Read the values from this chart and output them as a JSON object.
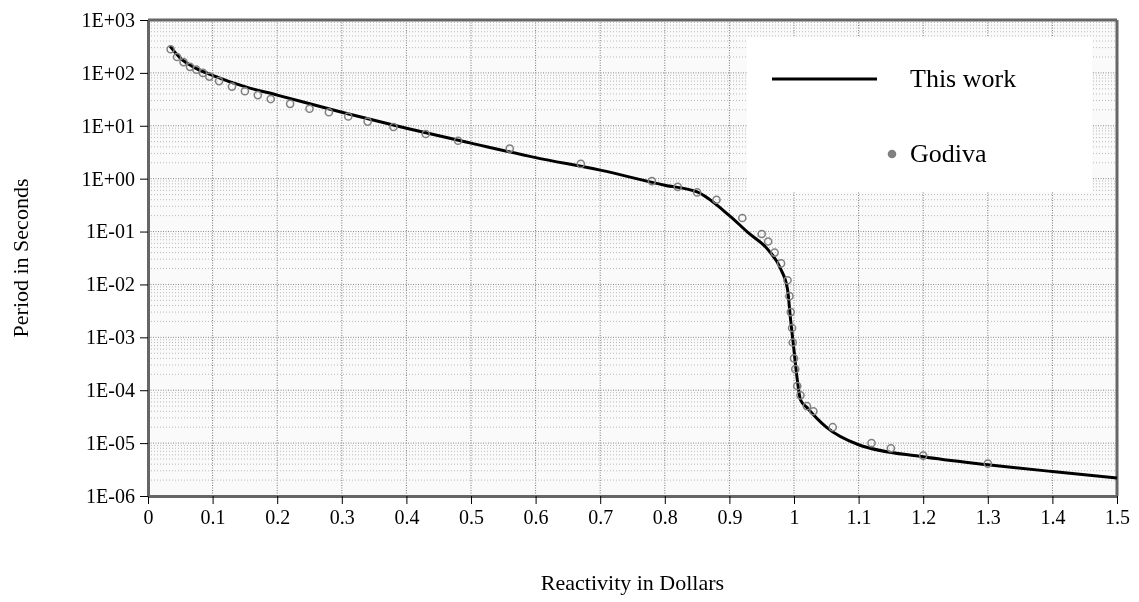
{
  "chart_data": {
    "type": "line",
    "xlabel": "Reactivity in Dollars",
    "ylabel": "Period in Seconds",
    "log": "y",
    "grid": true,
    "legend": "top right",
    "xlim": [
      0,
      1.5
    ],
    "xticks": [
      0,
      0.1,
      0.2,
      0.3,
      0.4,
      0.5,
      0.6,
      0.7,
      0.8,
      0.9,
      1,
      1.1,
      1.2,
      1.3,
      1.4,
      1.5
    ],
    "ylim": [
      1e-06,
      1000
    ],
    "yticks": [
      {
        "value": 1000,
        "label": "1E+03"
      },
      {
        "value": 100,
        "label": "1E+02"
      },
      {
        "value": 10,
        "label": "1E+01"
      },
      {
        "value": 1,
        "label": "1E+00"
      },
      {
        "value": 0.1,
        "label": "1E-01"
      },
      {
        "value": 0.01,
        "label": "1E-02"
      },
      {
        "value": 0.001,
        "label": "1E-03"
      },
      {
        "value": 0.0001,
        "label": "1E-04"
      },
      {
        "value": 1e-05,
        "label": "1E-05"
      },
      {
        "value": 1e-06,
        "label": "1E-06"
      }
    ],
    "series": [
      {
        "name": "This work",
        "color": "#000000",
        "line_style": "solid",
        "marker": "none",
        "x": [
          0.034,
          0.05,
          0.07,
          0.1,
          0.15,
          0.2,
          0.3,
          0.4,
          0.5,
          0.6,
          0.7,
          0.8,
          0.85,
          0.9,
          0.93,
          0.96,
          0.98,
          0.99,
          0.995,
          1.0,
          1.005,
          1.01,
          1.02,
          1.05,
          1.1,
          1.2,
          1.3,
          1.4,
          1.5
        ],
        "values": [
          320,
          190,
          130,
          90,
          55,
          38,
          18,
          9,
          4.7,
          2.5,
          1.45,
          0.75,
          0.56,
          0.2,
          0.093,
          0.045,
          0.019,
          0.008,
          0.002,
          0.00057,
          0.00016,
          6.6e-05,
          4.7e-05,
          2e-05,
          9.3e-06,
          5.5e-06,
          3.9e-06,
          2.9e-06,
          2.2e-06
        ]
      },
      {
        "name": "Godiva",
        "type": "scatter",
        "color": "#808080",
        "marker": "circle",
        "x": [
          0.035,
          0.045,
          0.055,
          0.065,
          0.075,
          0.085,
          0.095,
          0.11,
          0.13,
          0.15,
          0.17,
          0.19,
          0.22,
          0.25,
          0.28,
          0.31,
          0.34,
          0.38,
          0.43,
          0.48,
          0.56,
          0.67,
          0.78,
          0.82,
          0.85,
          0.88,
          0.92,
          0.95,
          0.96,
          0.97,
          0.98,
          0.99,
          0.993,
          0.995,
          0.997,
          0.998,
          1.0,
          1.002,
          1.005,
          1.01,
          1.02,
          1.03,
          1.06,
          1.12,
          1.15,
          1.2,
          1.3
        ],
        "values": [
          280,
          200,
          160,
          130,
          115,
          100,
          85,
          70,
          55,
          45,
          38,
          32,
          26,
          21,
          18,
          15,
          12,
          9.5,
          7,
          5.2,
          3.7,
          1.9,
          0.9,
          0.7,
          0.55,
          0.4,
          0.18,
          0.09,
          0.065,
          0.04,
          0.025,
          0.012,
          0.006,
          0.003,
          0.0015,
          0.0008,
          0.0004,
          0.00025,
          0.00012,
          8e-05,
          5e-05,
          4e-05,
          2e-05,
          1e-05,
          8e-06,
          5.8e-06,
          4.1e-06
        ]
      }
    ]
  }
}
